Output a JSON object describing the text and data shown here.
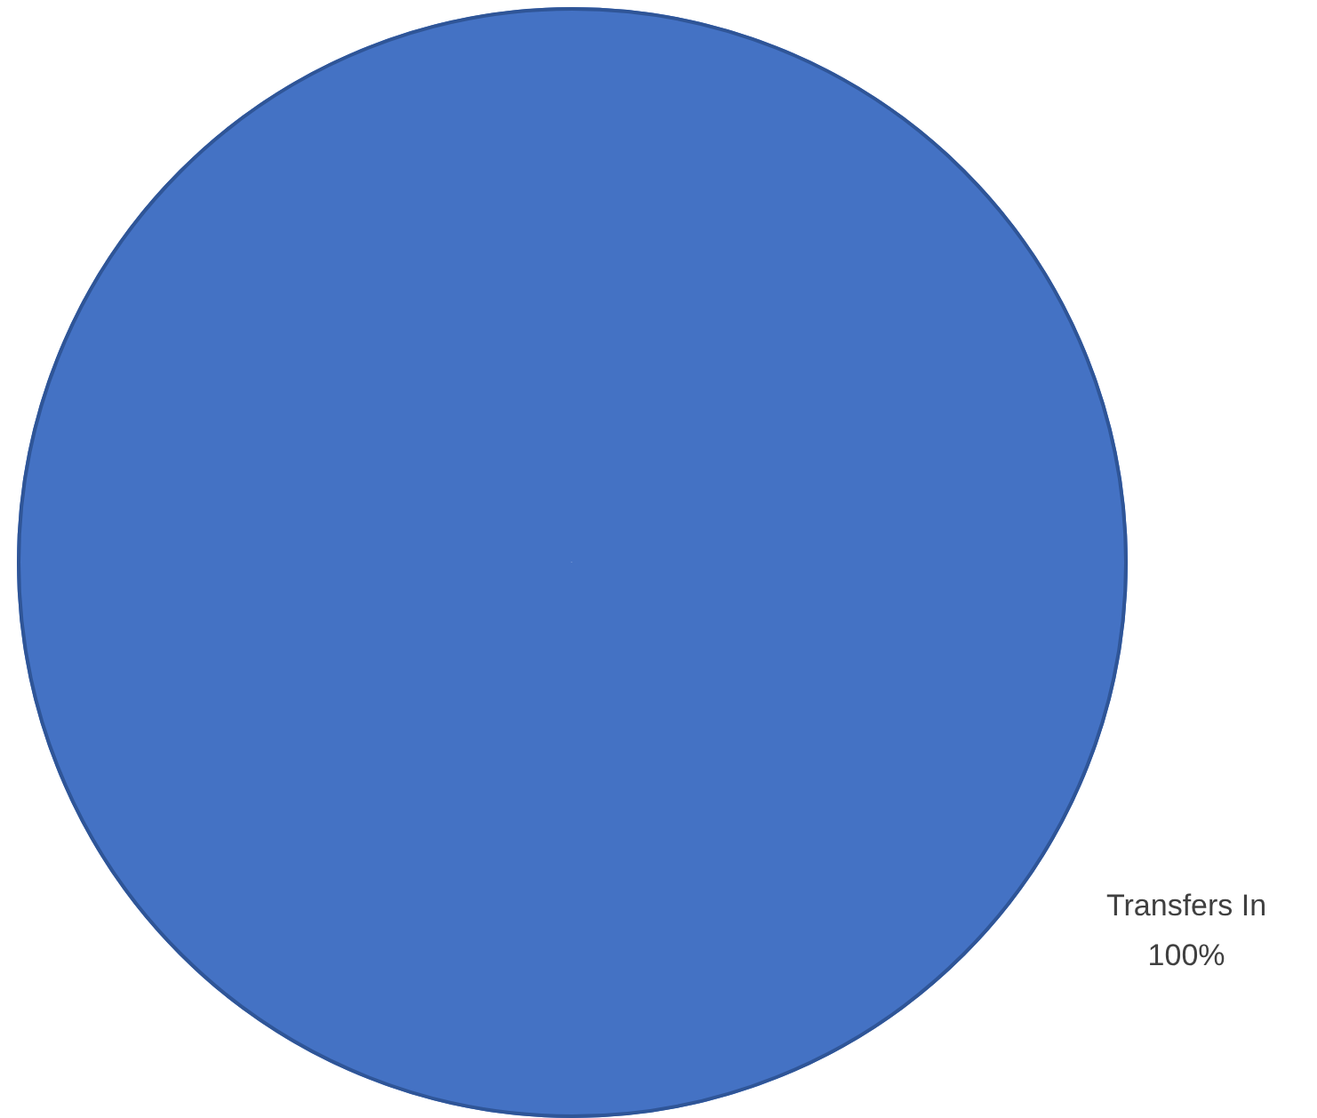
{
  "chart_data": {
    "type": "pie",
    "categories": [
      "Transfers In"
    ],
    "values": [
      100
    ],
    "colors": [
      "#4472c4"
    ],
    "value_labels": [
      "100%"
    ],
    "legend": false
  }
}
